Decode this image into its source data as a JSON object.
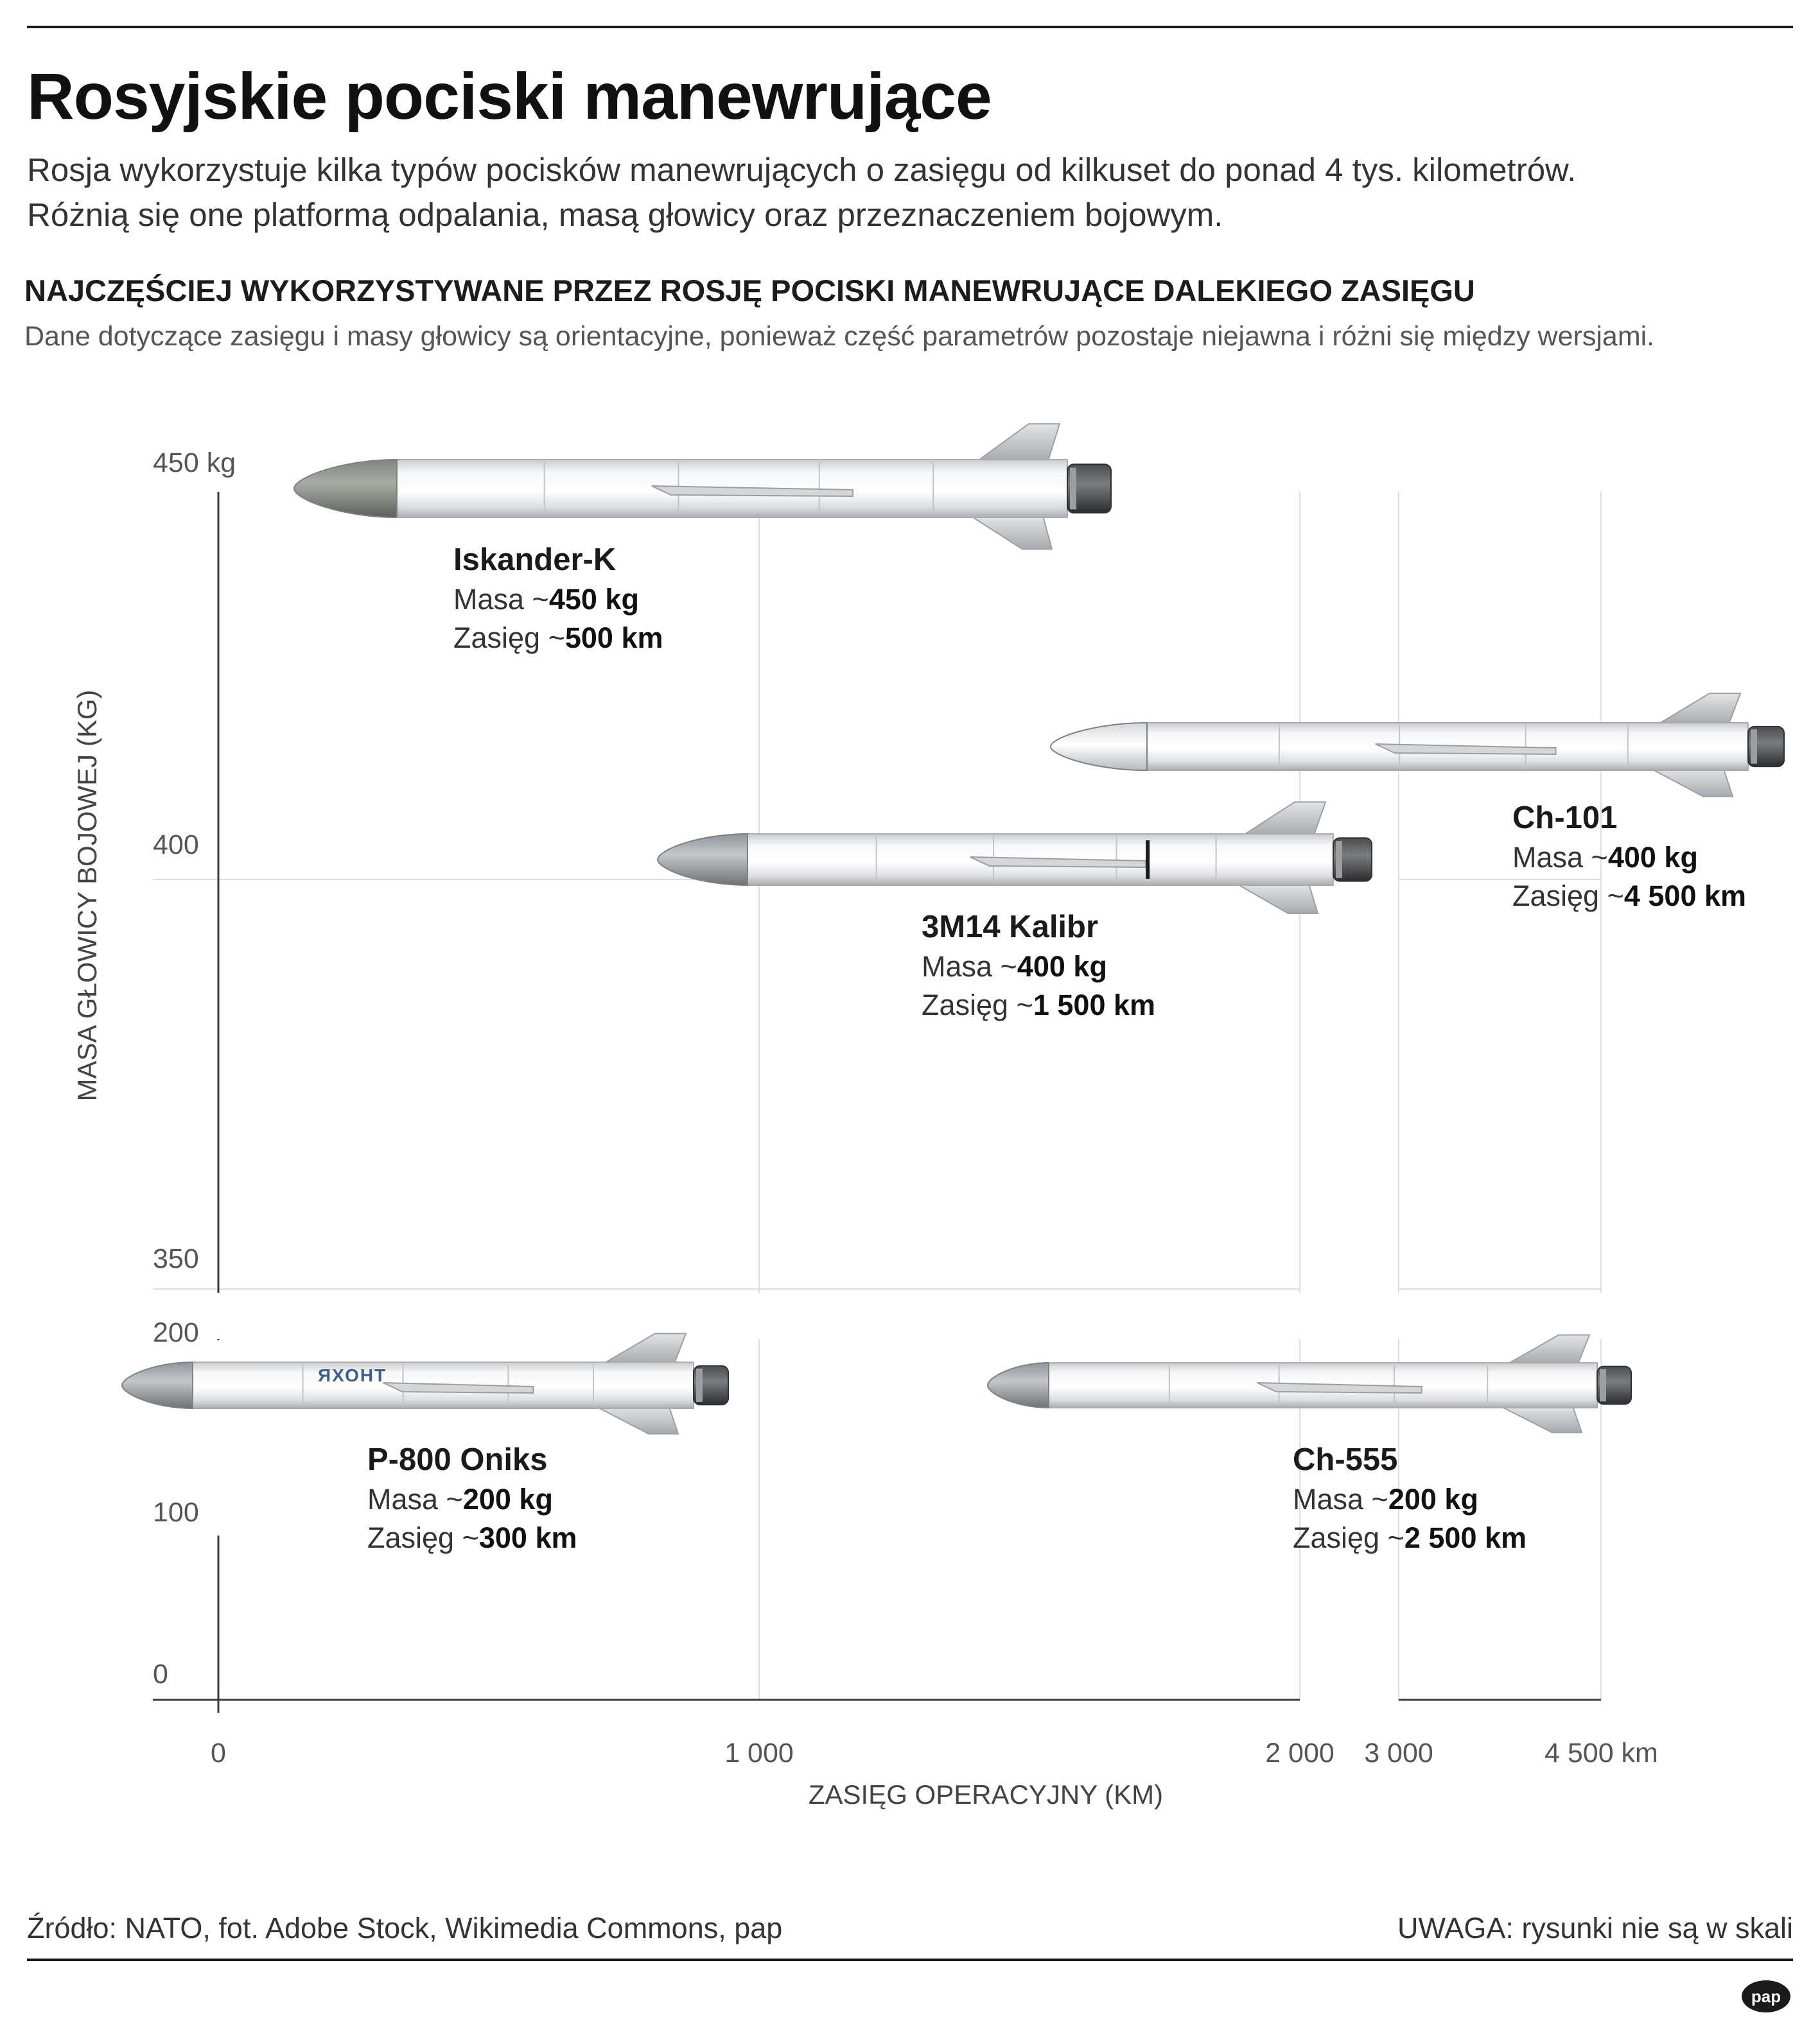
{
  "title": "Rosyjskie pociski manewrujące",
  "lead": [
    "Rosja wykorzystuje kilka typów pocisków manewrujących o zasięgu od kilkuset do ponad 4 tys. kilometrów.",
    "Różnią się one platformą odpalania, masą głowicy oraz przeznaczeniem bojowym."
  ],
  "section_title": "NAJCZĘŚCIEJ WYKORZYSTYWANE PRZEZ ROSJĘ POCISKI MANEWRUJĄCE DALEKIEGO ZASIĘGU",
  "note": "Dane dotyczące zasięgu i masy głowicy są orientacyjne, ponieważ część parametrów pozostaje niejawna i różni się między wersjami.",
  "chart_data": {
    "type": "scatter",
    "xlabel": "ZASIĘG OPERACYJNY (KM)",
    "ylabel": "MASA GŁOWICY BOJOWEJ (KG)",
    "x_axis_breaks": [
      [
        2000,
        3000
      ]
    ],
    "y_axis_breaks": [
      [
        200,
        350
      ]
    ],
    "x_ticks": [
      {
        "value": 0,
        "label": "0"
      },
      {
        "value": 1000,
        "label": "1 000"
      },
      {
        "value": 2000,
        "label": "2 000"
      },
      {
        "value": 3000,
        "label": "3 000"
      },
      {
        "value": 4500,
        "label": "4 500 km"
      }
    ],
    "y_ticks": [
      {
        "value": 0,
        "label": "0"
      },
      {
        "value": 100,
        "label": "100"
      },
      {
        "value": 200,
        "label": "200"
      },
      {
        "value": 350,
        "label": "350"
      },
      {
        "value": 400,
        "label": "400"
      },
      {
        "value": 450,
        "label": "450 kg"
      }
    ],
    "mass_prefix": "Masa ~",
    "range_prefix": "Zasięg ~",
    "series": [
      {
        "name": "Iskander-K",
        "mass_kg": 450,
        "range_km": 500,
        "mass_label": "450 kg",
        "range_label": "500 km"
      },
      {
        "name": "Ch-101",
        "mass_kg": 400,
        "range_km": 4500,
        "mass_label": "400 kg",
        "range_label": "4 500 km"
      },
      {
        "name": "3M14 Kalibr",
        "mass_kg": 400,
        "range_km": 1500,
        "mass_label": "400 kg",
        "range_label": "1 500 km"
      },
      {
        "name": "P-800 Oniks",
        "mass_kg": 200,
        "range_km": 300,
        "mass_label": "200 kg",
        "range_label": "300 km",
        "body_text": "ЯХОНТ"
      },
      {
        "name": "Ch-555",
        "mass_kg": 200,
        "range_km": 2500,
        "mass_label": "200 kg",
        "range_label": "2 500 km"
      }
    ]
  },
  "source": "Źródło: NATO, fot. Adobe Stock, Wikimedia Commons, pap",
  "disclaimer": "UWAGA: rysunki nie są w skali",
  "logo_text": "pap"
}
